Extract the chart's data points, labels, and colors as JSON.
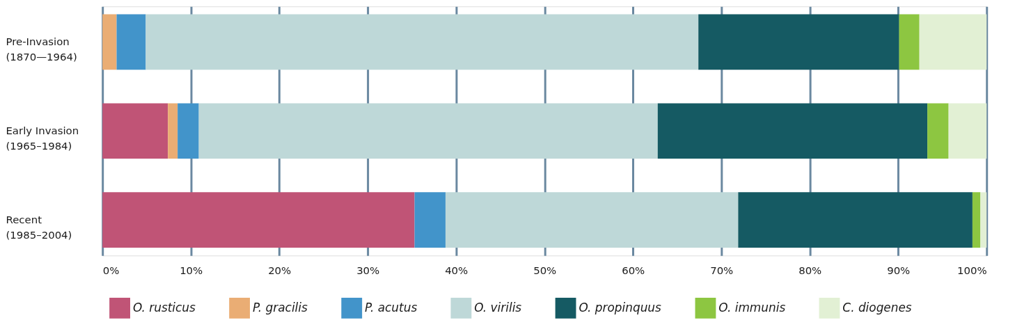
{
  "chart_data": {
    "type": "bar",
    "orientation": "horizontal",
    "stacked": true,
    "categories": [
      "Pre-Invasion\n(1870—1964)",
      "Early Invasion\n(1965–1984)",
      "Recent\n(1985–2004)"
    ],
    "series": [
      {
        "name": "O. rusticus",
        "color": "#c05476",
        "values": [
          0,
          7.4,
          35.3
        ]
      },
      {
        "name": "P. gracilis",
        "color": "#eaad74",
        "values": [
          1.6,
          1.1,
          0
        ]
      },
      {
        "name": "P. acutus",
        "color": "#4294ca",
        "values": [
          3.3,
          2.4,
          3.5
        ]
      },
      {
        "name": "O. virilis",
        "color": "#bed8d8",
        "values": [
          62.5,
          51.9,
          33.1
        ]
      },
      {
        "name": "O. propinquus",
        "color": "#155a63",
        "values": [
          22.7,
          30.5,
          26.5
        ]
      },
      {
        "name": "O. immunis",
        "color": "#8dc641",
        "values": [
          2.3,
          2.4,
          0.9
        ]
      },
      {
        "name": "C. diogenes",
        "color": "#e2f0d4",
        "values": [
          7.6,
          4.3,
          0.7
        ]
      }
    ],
    "xlim": [
      0,
      100
    ],
    "xticks": [
      {
        "value": 0,
        "label": "0%"
      },
      {
        "value": 10,
        "label": "10%"
      },
      {
        "value": 20,
        "label": "20%"
      },
      {
        "value": 30,
        "label": "30%"
      },
      {
        "value": 40,
        "label": "40%"
      },
      {
        "value": 50,
        "label": "50%"
      },
      {
        "value": 60,
        "label": "60%"
      },
      {
        "value": 70,
        "label": "70%"
      },
      {
        "value": 80,
        "label": "80%"
      },
      {
        "value": 90,
        "label": "90%"
      },
      {
        "value": 100,
        "label": "100%"
      }
    ],
    "grid": "x",
    "legend": "bottom"
  }
}
